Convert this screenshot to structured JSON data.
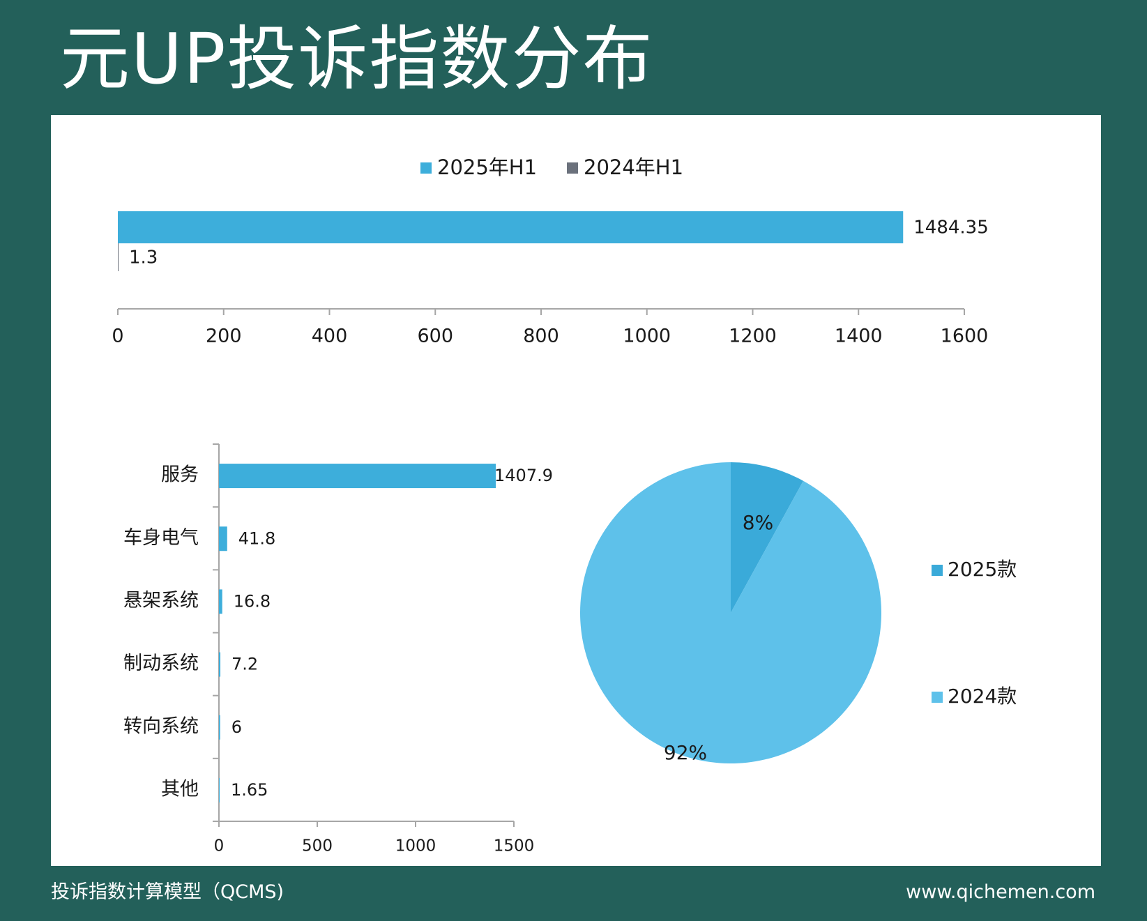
{
  "title": "元UP投诉指数分布",
  "footer": {
    "left": "投诉指数计算模型（QCMS)",
    "right": "www.qichemen.com"
  },
  "colors": {
    "background": "#23605a",
    "panel": "#ffffff",
    "series_2025": "#3daedb",
    "series_2024": "#6b717c",
    "pie_2025": "#3aaad9",
    "pie_2024": "#5ec1ea",
    "axis": "#a6a6a6"
  },
  "chart_data": [
    {
      "type": "bar",
      "orientation": "horizontal",
      "title": "",
      "legend": {
        "placement": "top-center"
      },
      "series": [
        {
          "name": "2025年H1",
          "values": [
            1484.35
          ],
          "labels": [
            "1484.35"
          ]
        },
        {
          "name": "2024年H1",
          "values": [
            1.3
          ],
          "labels": [
            "1.3"
          ]
        }
      ],
      "xlim": [
        0,
        1600
      ],
      "xticks": [
        "0",
        "200",
        "400",
        "600",
        "800",
        "1000",
        "1200",
        "1400",
        "1600"
      ],
      "grid": false
    },
    {
      "type": "bar",
      "orientation": "horizontal",
      "title": "",
      "categories": [
        "服务",
        "车身电气",
        "悬架系统",
        "制动系统",
        "转向系统",
        "其他"
      ],
      "values": [
        1407.9,
        41.8,
        16.8,
        7.2,
        6,
        1.65
      ],
      "labels": [
        "1407.9",
        "41.8",
        "16.8",
        "7.2",
        "6",
        "1.65"
      ],
      "xlim": [
        0,
        1500
      ],
      "xticks": [
        "0",
        "500",
        "1000",
        "1500"
      ],
      "grid": false
    },
    {
      "type": "pie",
      "title": "",
      "legend": {
        "placement": "right"
      },
      "slices": [
        {
          "name": "2025款",
          "value": 8,
          "label": "8%"
        },
        {
          "name": "2024款",
          "value": 92,
          "label": "92%"
        }
      ]
    }
  ]
}
